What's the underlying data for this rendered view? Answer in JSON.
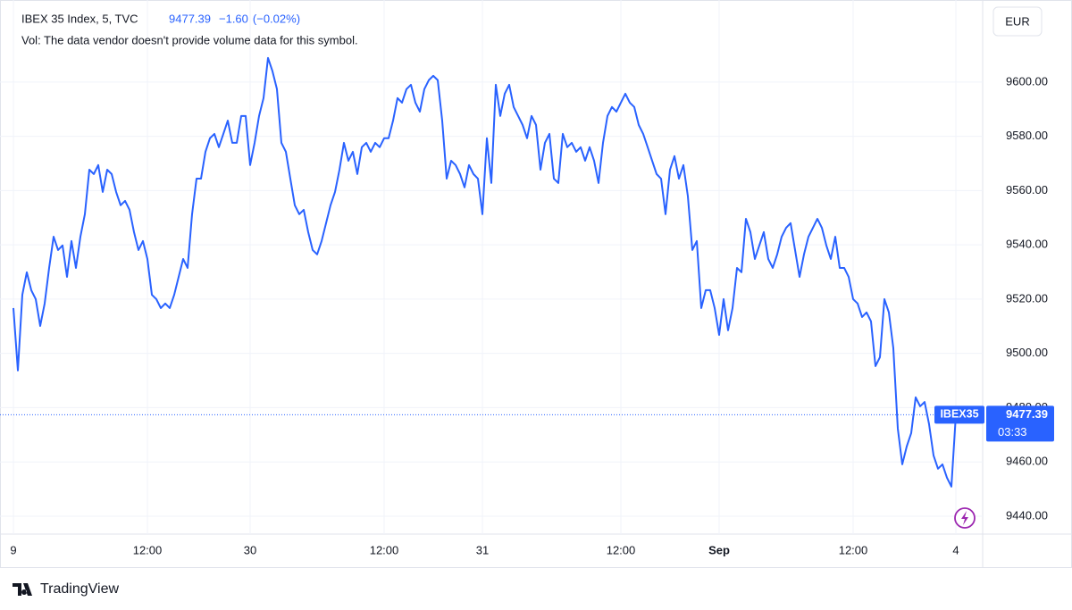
{
  "chart_data": {
    "type": "line",
    "legend": {
      "symbol": "IBEX 35 Index, 5, TVC",
      "change": "−1.60",
      "change_pct": "(−0.02%)",
      "volume_note": "Vol: The data vendor doesn't provide volume data for this symbol."
    },
    "currency": "EUR",
    "countdown": "03:33",
    "brand": "TradingView",
    "last_value": 9477.39,
    "x": [
      0,
      1,
      2,
      3,
      4,
      5,
      6,
      7,
      8,
      9,
      10,
      11,
      12,
      13,
      14,
      15,
      16,
      17,
      18,
      19,
      20,
      21,
      22,
      23,
      24,
      25,
      26,
      27,
      28,
      29,
      30,
      31,
      32,
      33,
      34,
      35,
      36,
      37,
      38,
      39,
      40,
      41,
      42,
      43,
      44,
      45,
      46,
      47,
      48,
      49,
      50,
      51,
      52,
      53,
      54,
      55,
      56,
      57,
      58,
      59,
      60,
      61,
      62,
      63,
      64,
      65,
      66,
      67,
      68,
      69,
      70,
      71,
      72,
      73,
      74,
      75,
      76,
      77,
      78,
      79,
      80,
      81,
      82,
      83,
      84,
      85,
      86,
      87,
      88,
      89,
      90,
      91,
      92,
      93,
      94,
      95,
      96,
      97,
      98,
      99,
      100,
      101,
      102,
      103,
      104,
      105,
      106,
      107,
      108,
      109,
      110,
      111,
      112,
      113,
      114,
      115,
      116,
      117,
      118,
      119,
      120,
      121,
      122,
      123,
      124,
      125,
      126,
      127,
      128,
      129,
      130,
      131,
      132,
      133,
      134,
      135,
      136,
      137,
      138,
      139,
      140,
      141,
      142,
      143,
      144,
      145,
      146,
      147,
      148,
      149,
      150,
      151,
      152,
      153,
      154,
      155,
      156,
      157,
      158,
      159,
      160,
      161,
      162,
      163,
      164,
      165,
      166,
      167,
      168,
      169,
      170,
      171,
      172,
      173,
      174,
      175,
      176,
      177,
      178,
      179,
      180,
      181,
      182,
      183,
      184,
      185,
      186,
      187,
      188,
      189,
      190,
      191,
      192,
      193,
      194,
      195,
      196,
      197,
      198,
      199,
      200,
      201,
      202,
      203,
      204,
      205,
      206,
      207,
      208,
      209,
      210,
      211
    ],
    "series": [
      {
        "name": "IBEX35",
        "color": "#2962ff",
        "values": [
          9516.7,
          9493.7,
          9521.6,
          9529.9,
          9523.3,
          9520.0,
          9510.1,
          9518.4,
          9531.5,
          9543.0,
          9538.1,
          9539.8,
          9528.2,
          9541.4,
          9531.5,
          9543.0,
          9551.3,
          9567.7,
          9566.1,
          9569.4,
          9559.5,
          9567.7,
          9566.1,
          9559.5,
          9554.6,
          9556.2,
          9552.9,
          9544.7,
          9538.1,
          9541.4,
          9534.8,
          9521.6,
          9520.0,
          9516.7,
          9518.4,
          9516.7,
          9521.6,
          9528.2,
          9534.8,
          9531.5,
          9551.3,
          9564.4,
          9564.4,
          9574.3,
          9579.3,
          9580.9,
          9576.0,
          9580.9,
          9585.8,
          9577.6,
          9577.6,
          9587.5,
          9587.5,
          9569.4,
          9577.6,
          9587.5,
          9594.1,
          9608.9,
          9604.0,
          9597.4,
          9577.6,
          9574.3,
          9564.4,
          9554.6,
          9551.3,
          9552.9,
          9544.7,
          9538.1,
          9536.5,
          9541.4,
          9548.0,
          9554.6,
          9559.5,
          9567.7,
          9577.6,
          9571.0,
          9574.3,
          9566.1,
          9576.0,
          9577.6,
          9574.3,
          9577.6,
          9576.0,
          9579.3,
          9579.3,
          9585.8,
          9594.1,
          9592.4,
          9597.4,
          9599.0,
          9592.4,
          9589.1,
          9597.4,
          9600.7,
          9602.3,
          9600.7,
          9585.8,
          9564.4,
          9571.0,
          9569.4,
          9566.1,
          9561.2,
          9569.4,
          9566.1,
          9564.4,
          9551.3,
          9579.3,
          9562.8,
          9599.0,
          9587.5,
          9595.7,
          9599.0,
          9590.8,
          9587.5,
          9584.2,
          9579.3,
          9587.5,
          9584.2,
          9567.7,
          9577.6,
          9580.9,
          9564.4,
          9562.8,
          9580.9,
          9576.0,
          9577.6,
          9574.3,
          9576.0,
          9571.0,
          9576.0,
          9571.0,
          9562.8,
          9577.6,
          9587.5,
          9590.8,
          9589.1,
          9592.4,
          9595.7,
          9592.4,
          9590.8,
          9584.2,
          9580.9,
          9576.0,
          9571.0,
          9566.1,
          9564.4,
          9551.3,
          9567.7,
          9572.7,
          9564.4,
          9569.4,
          9557.9,
          9538.1,
          9541.4,
          9516.7,
          9523.3,
          9523.3,
          9516.7,
          9506.8,
          9520.0,
          9508.5,
          9516.7,
          9531.5,
          9529.9,
          9549.6,
          9544.7,
          9534.8,
          9539.8,
          9544.7,
          9534.8,
          9531.5,
          9536.5,
          9543.0,
          9546.3,
          9548.0,
          9538.1,
          9528.2,
          9536.5,
          9543.0,
          9546.3,
          9549.6,
          9546.3,
          9539.8,
          9534.8,
          9543.0,
          9531.5,
          9531.5,
          9528.2,
          9520.0,
          9518.4,
          9513.4,
          9515.1,
          9511.8,
          9495.3,
          9498.6,
          9520.0,
          9515.1,
          9501.9,
          9472.3,
          9459.1,
          9465.7,
          9470.6,
          9483.8,
          9480.5,
          9482.1,
          9473.9,
          9462.4,
          9457.5,
          9459.1,
          9454.2,
          9450.9,
          9477.39
        ]
      }
    ],
    "xlim": [
      0,
      215
    ],
    "xticks": [
      {
        "value": 0,
        "label": "9"
      },
      {
        "value": 30,
        "label": "12:00"
      },
      {
        "value": 53,
        "label": "30"
      },
      {
        "value": 83,
        "label": "12:00"
      },
      {
        "value": 105,
        "label": "31"
      },
      {
        "value": 136,
        "label": "12:00"
      },
      {
        "value": 158,
        "label": "Sep"
      },
      {
        "value": 188,
        "label": "12:00"
      },
      {
        "value": 211,
        "label": "4"
      }
    ],
    "ylim": [
      9433.4,
      9628.6
    ],
    "yticks": [
      {
        "value": 9440,
        "label": "9440.00"
      },
      {
        "value": 9460,
        "label": "9460.00"
      },
      {
        "value": 9480,
        "label": "9480.00"
      },
      {
        "value": 9500,
        "label": "9500.00"
      },
      {
        "value": 9520,
        "label": "9520.00"
      },
      {
        "value": 9540,
        "label": "9540.00"
      },
      {
        "value": 9560,
        "label": "9560.00"
      },
      {
        "value": 9580,
        "label": "9580.00"
      },
      {
        "value": 9600,
        "label": "9600.00"
      }
    ],
    "grid": true
  }
}
